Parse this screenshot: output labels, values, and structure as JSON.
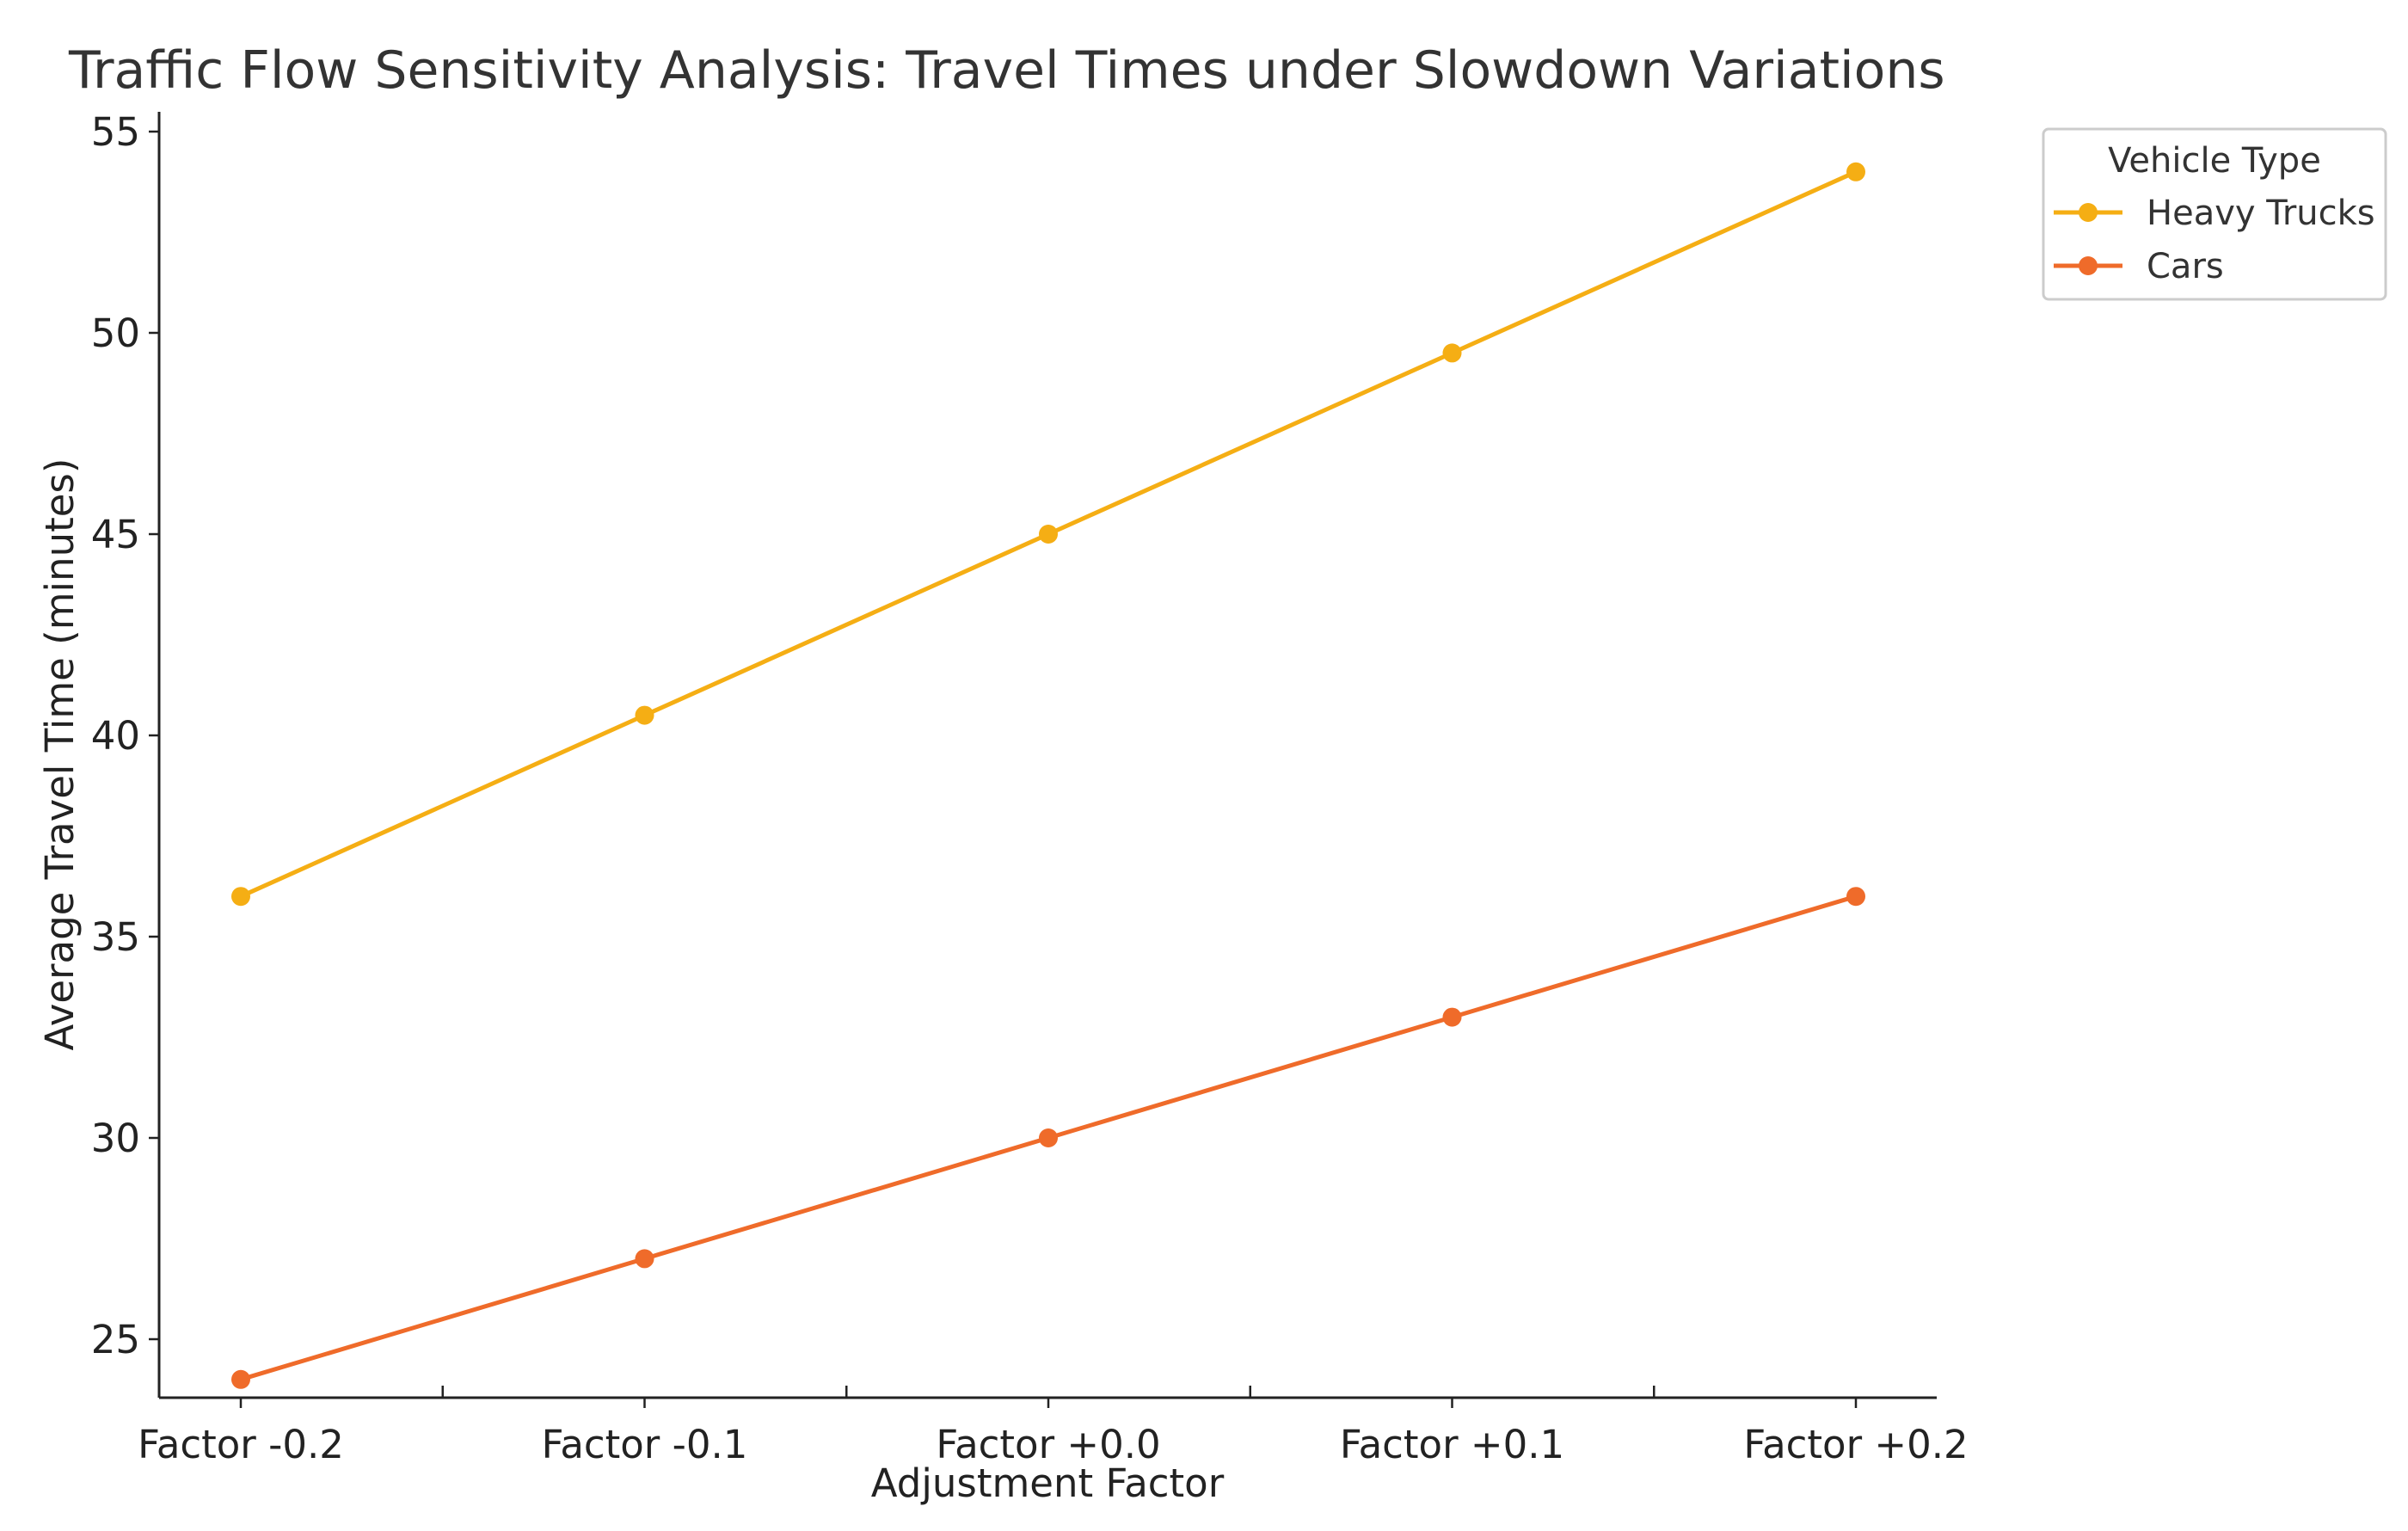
{
  "chart_data": {
    "type": "line",
    "title": "Traffic Flow Sensitivity Analysis: Travel Times under Slowdown Variations",
    "xlabel": "Adjustment Factor",
    "ylabel": "Average Travel Time (minutes)",
    "categories": [
      "Factor -0.2",
      "Factor -0.1",
      "Factor +0.0",
      "Factor +0.1",
      "Factor +0.2"
    ],
    "ylim": [
      22.5,
      55.5
    ],
    "yticks": [
      25,
      30,
      35,
      40,
      45,
      50,
      55
    ],
    "grid": false,
    "legend": {
      "title": "Vehicle Type",
      "placement": "upper-right-outside"
    },
    "series": [
      {
        "name": "Heavy Trucks",
        "values": [
          36,
          40.5,
          45,
          49.5,
          54
        ],
        "color": "#f5ae14"
      },
      {
        "name": "Cars",
        "values": [
          24,
          27,
          30,
          33,
          36
        ],
        "color": "#ef6b2a"
      }
    ]
  }
}
